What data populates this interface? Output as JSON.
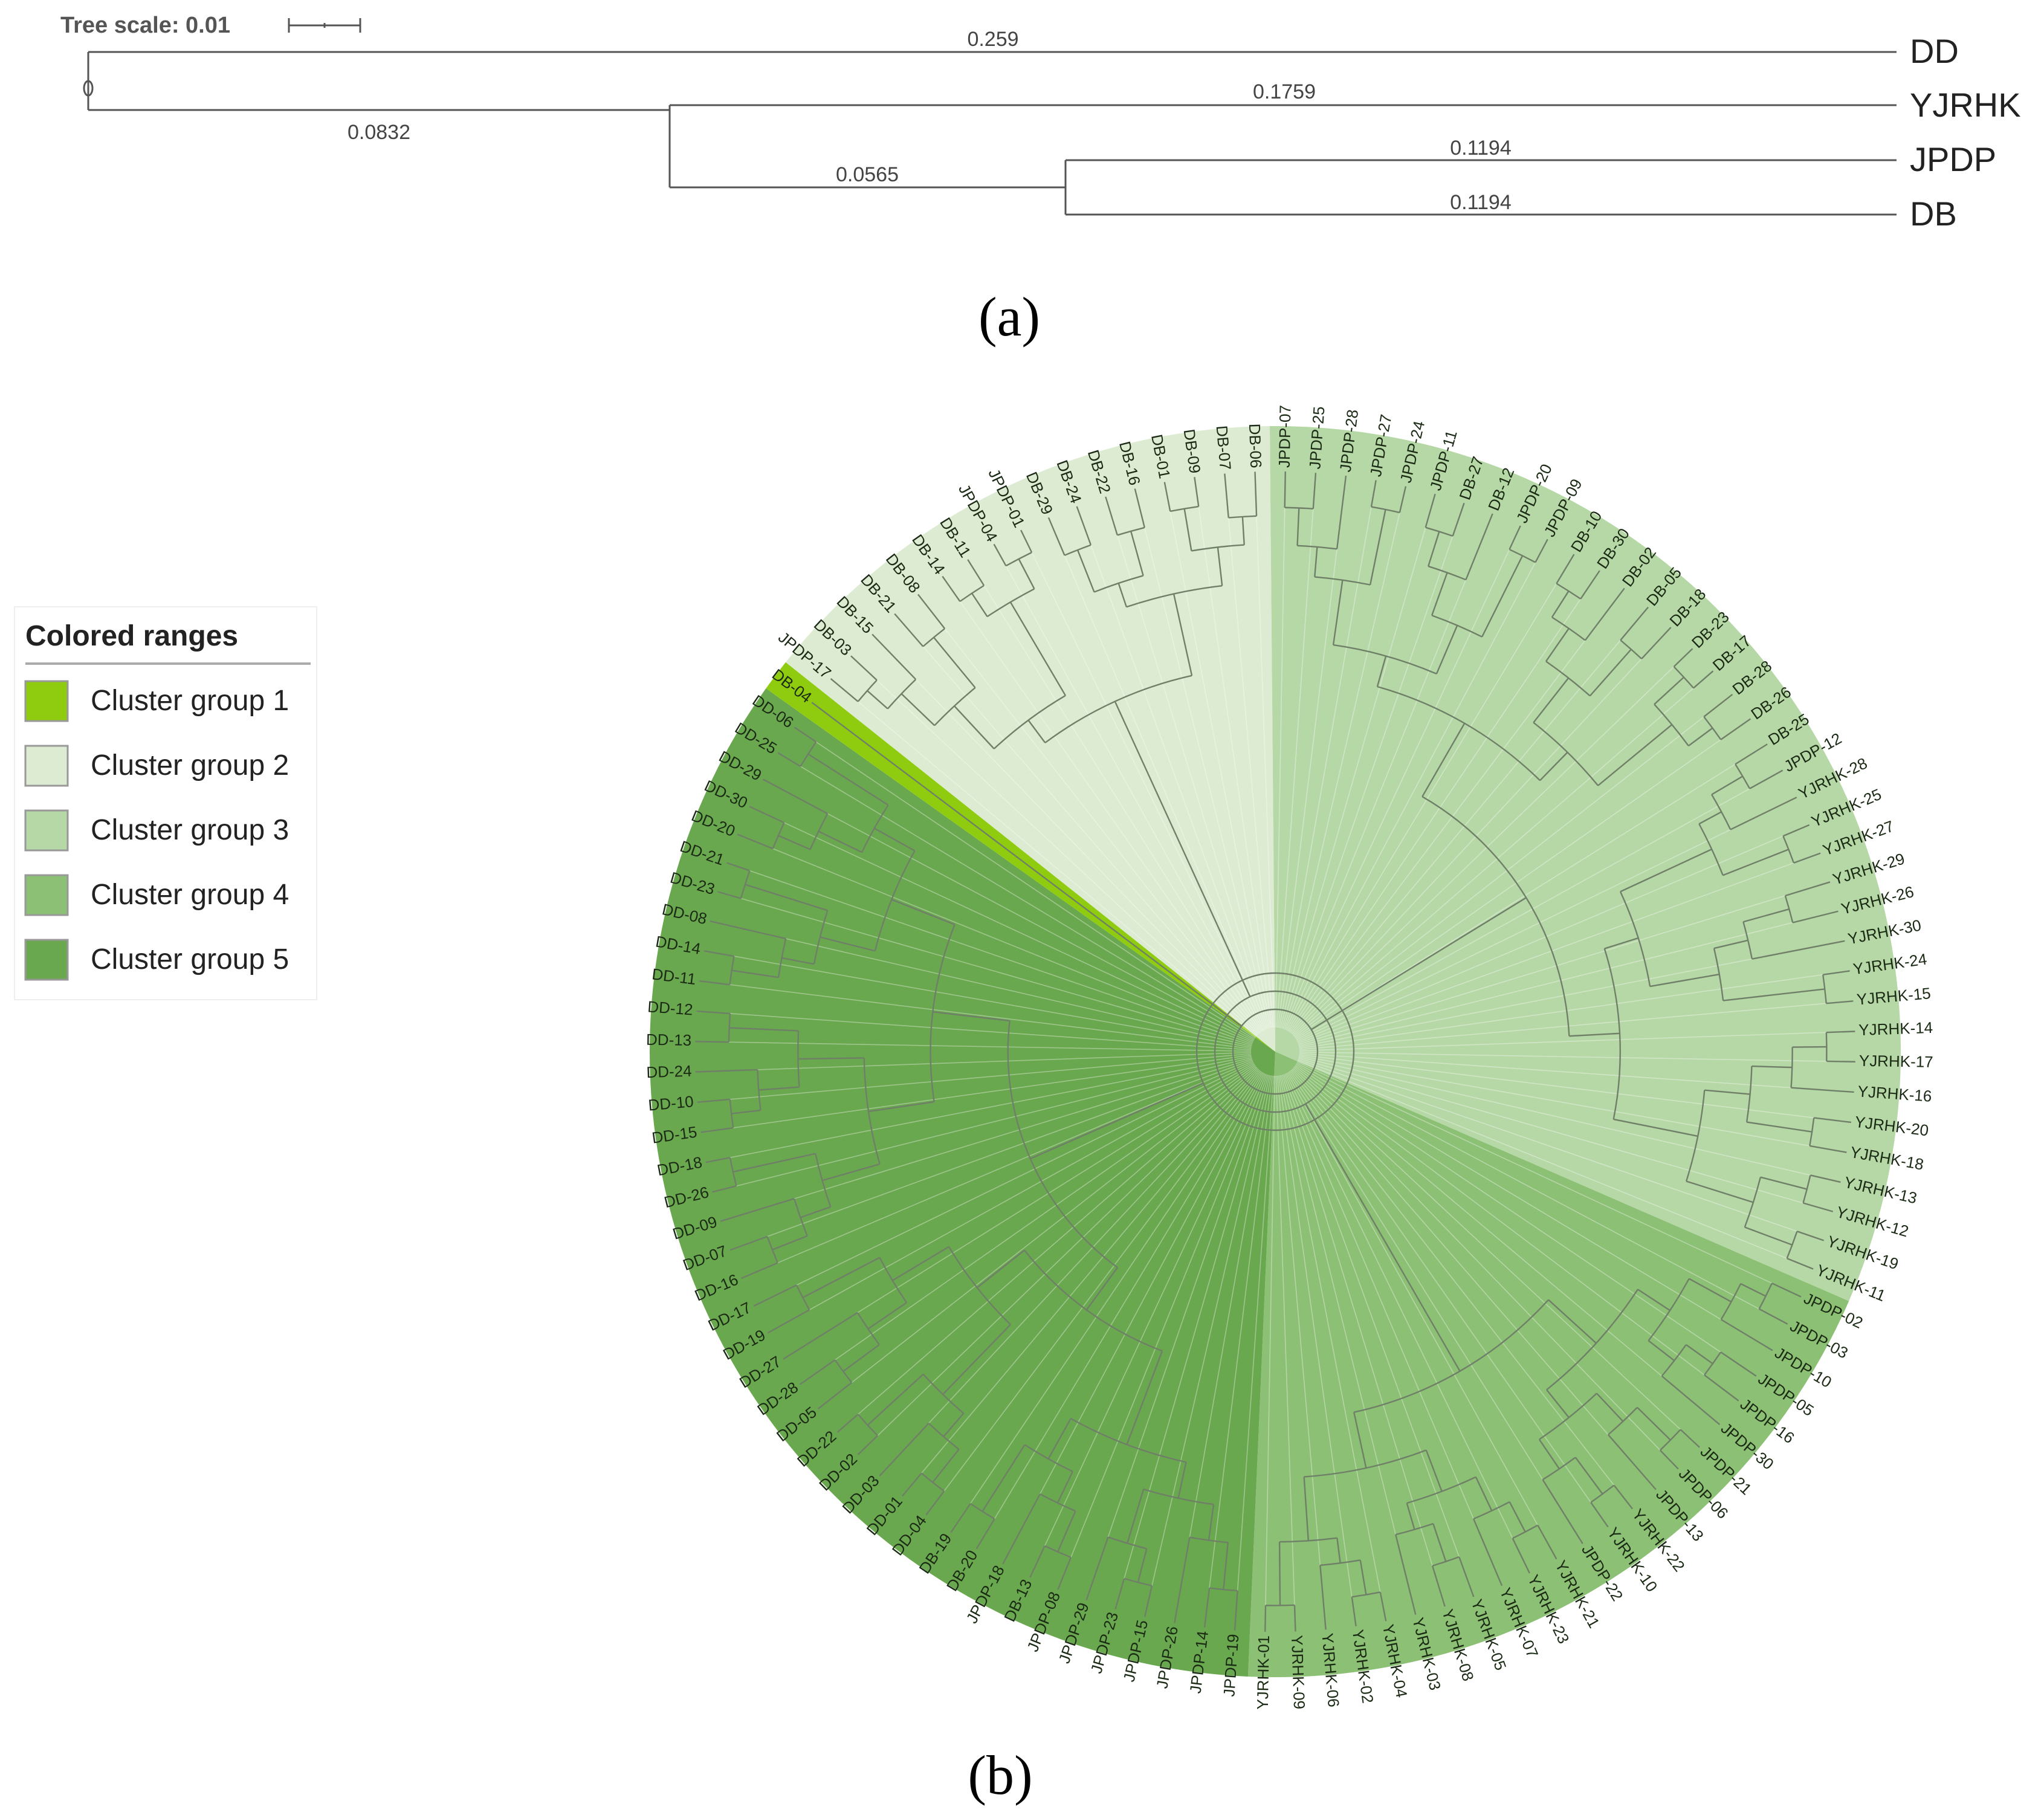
{
  "panel_a": {
    "tree_scale_label": "Tree scale: 0.01",
    "caption": "(a)",
    "branch_lengths": {
      "dd": "0.259",
      "inner": "0.0832",
      "yjrhk": "0.1759",
      "inner2": "0.0565",
      "jpdp": "0.1194",
      "db": "0.1194"
    },
    "tips": [
      "DD",
      "YJRHK",
      "JPDP",
      "DB"
    ]
  },
  "panel_b": {
    "caption": "(b)",
    "legend": {
      "title": "Colored ranges",
      "items": [
        {
          "label": "Cluster group 1",
          "color": "#8fcc10"
        },
        {
          "label": "Cluster group 2",
          "color": "#dcebd2"
        },
        {
          "label": "Cluster group 3",
          "color": "#b6d8a6"
        },
        {
          "label": "Cluster group 4",
          "color": "#8cc074"
        },
        {
          "label": "Cluster group 5",
          "color": "#6aa84f"
        }
      ]
    },
    "cluster_colors": [
      "#8fcc10",
      "#dcebd2",
      "#b6d8a6",
      "#8cc074",
      "#6aa84f"
    ],
    "leaves": [
      {
        "label": "JPDP-07",
        "group": 3
      },
      {
        "label": "JPDP-25",
        "group": 3
      },
      {
        "label": "JPDP-28",
        "group": 3
      },
      {
        "label": "JPDP-27",
        "group": 3
      },
      {
        "label": "JPDP-24",
        "group": 3
      },
      {
        "label": "JPDP-11",
        "group": 3
      },
      {
        "label": "DB-27",
        "group": 3
      },
      {
        "label": "DB-12",
        "group": 3
      },
      {
        "label": "JPDP-20",
        "group": 3
      },
      {
        "label": "JPDP-09",
        "group": 3
      },
      {
        "label": "DB-10",
        "group": 3
      },
      {
        "label": "DB-30",
        "group": 3
      },
      {
        "label": "DB-02",
        "group": 3
      },
      {
        "label": "DB-05",
        "group": 3
      },
      {
        "label": "DB-18",
        "group": 3
      },
      {
        "label": "DB-23",
        "group": 3
      },
      {
        "label": "DB-17",
        "group": 3
      },
      {
        "label": "DB-28",
        "group": 3
      },
      {
        "label": "DB-26",
        "group": 3
      },
      {
        "label": "DB-25",
        "group": 3
      },
      {
        "label": "JPDP-12",
        "group": 3
      },
      {
        "label": "YJRHK-28",
        "group": 3
      },
      {
        "label": "YJRHK-25",
        "group": 3
      },
      {
        "label": "YJRHK-27",
        "group": 3
      },
      {
        "label": "YJRHK-29",
        "group": 3
      },
      {
        "label": "YJRHK-26",
        "group": 3
      },
      {
        "label": "YJRHK-30",
        "group": 3
      },
      {
        "label": "YJRHK-24",
        "group": 3
      },
      {
        "label": "YJRHK-15",
        "group": 3
      },
      {
        "label": "YJRHK-14",
        "group": 3
      },
      {
        "label": "YJRHK-17",
        "group": 3
      },
      {
        "label": "YJRHK-16",
        "group": 3
      },
      {
        "label": "YJRHK-20",
        "group": 3
      },
      {
        "label": "YJRHK-18",
        "group": 3
      },
      {
        "label": "YJRHK-13",
        "group": 3
      },
      {
        "label": "YJRHK-12",
        "group": 3
      },
      {
        "label": "YJRHK-19",
        "group": 3
      },
      {
        "label": "YJRHK-11",
        "group": 3
      },
      {
        "label": "JPDP-02",
        "group": 4
      },
      {
        "label": "JPDP-03",
        "group": 4
      },
      {
        "label": "JPDP-10",
        "group": 4
      },
      {
        "label": "JPDP-05",
        "group": 4
      },
      {
        "label": "JPDP-16",
        "group": 4
      },
      {
        "label": "JPDP-30",
        "group": 4
      },
      {
        "label": "JPDP-21",
        "group": 4
      },
      {
        "label": "JPDP-06",
        "group": 4
      },
      {
        "label": "JPDP-13",
        "group": 4
      },
      {
        "label": "YJRHK-22",
        "group": 4
      },
      {
        "label": "YJRHK-10",
        "group": 4
      },
      {
        "label": "JPDP-22",
        "group": 4
      },
      {
        "label": "YJRHK-21",
        "group": 4
      },
      {
        "label": "YJRHK-23",
        "group": 4
      },
      {
        "label": "YJRHK-07",
        "group": 4
      },
      {
        "label": "YJRHK-05",
        "group": 4
      },
      {
        "label": "YJRHK-08",
        "group": 4
      },
      {
        "label": "YJRHK-03",
        "group": 4
      },
      {
        "label": "YJRHK-04",
        "group": 4
      },
      {
        "label": "YJRHK-02",
        "group": 4
      },
      {
        "label": "YJRHK-06",
        "group": 4
      },
      {
        "label": "YJRHK-09",
        "group": 4
      },
      {
        "label": "YJRHK-01",
        "group": 4
      },
      {
        "label": "JPDP-19",
        "group": 5
      },
      {
        "label": "JPDP-14",
        "group": 5
      },
      {
        "label": "JPDP-26",
        "group": 5
      },
      {
        "label": "JPDP-15",
        "group": 5
      },
      {
        "label": "JPDP-23",
        "group": 5
      },
      {
        "label": "JPDP-29",
        "group": 5
      },
      {
        "label": "JPDP-08",
        "group": 5
      },
      {
        "label": "DB-13",
        "group": 5
      },
      {
        "label": "JPDP-18",
        "group": 5
      },
      {
        "label": "DB-20",
        "group": 5
      },
      {
        "label": "DB-19",
        "group": 5
      },
      {
        "label": "DD-04",
        "group": 5
      },
      {
        "label": "DD-01",
        "group": 5
      },
      {
        "label": "DD-03",
        "group": 5
      },
      {
        "label": "DD-02",
        "group": 5
      },
      {
        "label": "DD-22",
        "group": 5
      },
      {
        "label": "DD-05",
        "group": 5
      },
      {
        "label": "DD-28",
        "group": 5
      },
      {
        "label": "DD-27",
        "group": 5
      },
      {
        "label": "DD-19",
        "group": 5
      },
      {
        "label": "DD-17",
        "group": 5
      },
      {
        "label": "DD-16",
        "group": 5
      },
      {
        "label": "DD-07",
        "group": 5
      },
      {
        "label": "DD-09",
        "group": 5
      },
      {
        "label": "DD-26",
        "group": 5
      },
      {
        "label": "DD-18",
        "group": 5
      },
      {
        "label": "DD-15",
        "group": 5
      },
      {
        "label": "DD-10",
        "group": 5
      },
      {
        "label": "DD-24",
        "group": 5
      },
      {
        "label": "DD-13",
        "group": 5
      },
      {
        "label": "DD-12",
        "group": 5
      },
      {
        "label": "DD-11",
        "group": 5
      },
      {
        "label": "DD-14",
        "group": 5
      },
      {
        "label": "DD-08",
        "group": 5
      },
      {
        "label": "DD-23",
        "group": 5
      },
      {
        "label": "DD-21",
        "group": 5
      },
      {
        "label": "DD-20",
        "group": 5
      },
      {
        "label": "DD-30",
        "group": 5
      },
      {
        "label": "DD-29",
        "group": 5
      },
      {
        "label": "DD-25",
        "group": 5
      },
      {
        "label": "DD-06",
        "group": 5
      },
      {
        "label": "DB-04",
        "group": 1
      },
      {
        "label": "JPDP-17",
        "group": 2
      },
      {
        "label": "DB-03",
        "group": 2
      },
      {
        "label": "DB-15",
        "group": 2
      },
      {
        "label": "DB-21",
        "group": 2
      },
      {
        "label": "DB-08",
        "group": 2
      },
      {
        "label": "DB-14",
        "group": 2
      },
      {
        "label": "DB-11",
        "group": 2
      },
      {
        "label": "JPDP-04",
        "group": 2
      },
      {
        "label": "JPDP-01",
        "group": 2
      },
      {
        "label": "DB-29",
        "group": 2
      },
      {
        "label": "DB-24",
        "group": 2
      },
      {
        "label": "DB-22",
        "group": 2
      },
      {
        "label": "DB-16",
        "group": 2
      },
      {
        "label": "DB-01",
        "group": 2
      },
      {
        "label": "DB-09",
        "group": 2
      },
      {
        "label": "DB-07",
        "group": 2
      },
      {
        "label": "DB-06",
        "group": 2
      }
    ]
  }
}
